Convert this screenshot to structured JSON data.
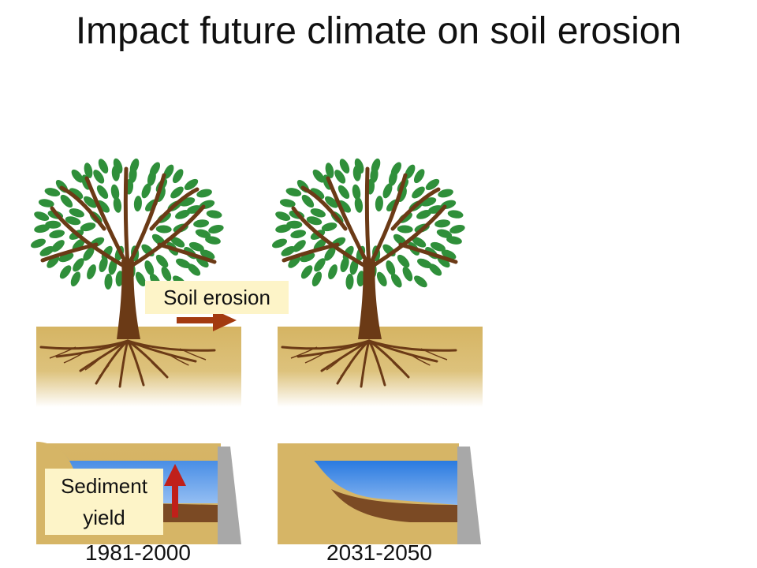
{
  "title": "Impact future climate on soil erosion",
  "labels": {
    "soil_erosion": "Soil erosion",
    "sediment_yield": "Sediment yield"
  },
  "periods": [
    "1981-2000",
    "2031-2050"
  ],
  "colors": {
    "soil": "#d6b566",
    "leaf": "#2f8f3a",
    "trunk": "#6b3a16",
    "water": "#3f8be0",
    "sediment": "#7b4a24",
    "dam": "#a8a8a8",
    "arrow": "#a33a10",
    "callout": "#fdf4c8"
  }
}
